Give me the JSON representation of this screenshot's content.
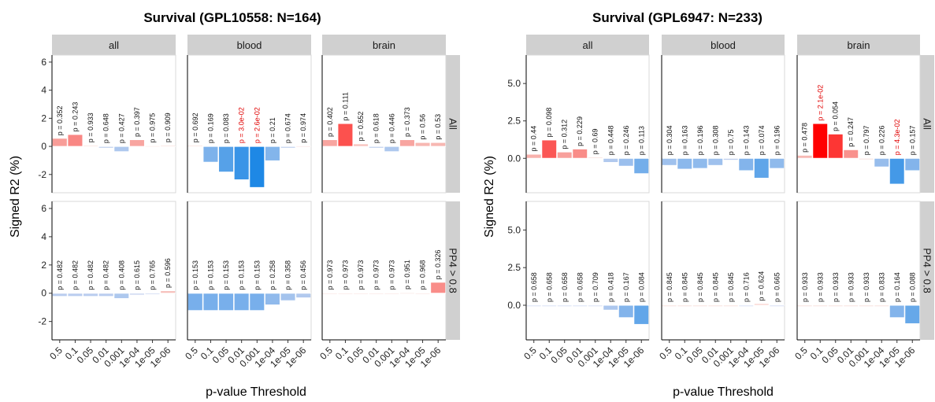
{
  "chart_data": [
    {
      "type": "bar",
      "title": "Survival (GPL10558: N=164)",
      "xlabel": "p-value Threshold",
      "ylabel": "Signed R2 (%)",
      "categories": [
        "0.5",
        "0.1",
        "0.05",
        "0.01",
        "0.001",
        "1e-04",
        "1e-05",
        "1e-06"
      ],
      "columns": [
        "all",
        "blood",
        "brain"
      ],
      "rows": [
        "All",
        "PP4 > 0.8"
      ],
      "ylim": [
        -3.3,
        6.5
      ],
      "yticks": [
        6,
        4,
        2,
        0,
        -2
      ],
      "yticklabels": [
        "6",
        "4",
        "2",
        "0",
        "-2"
      ],
      "panels": [
        {
          "column": "all",
          "row": "All",
          "values": [
            0.55,
            0.82,
            0.05,
            -0.1,
            -0.35,
            0.45,
            0.03,
            0.05
          ],
          "labels": [
            "p = 0.352",
            "p = 0.243",
            "p = 0.933",
            "p = 0.648",
            "p = 0.427",
            "p = 0.397",
            "p = 0.975",
            "p = 0.909"
          ],
          "significant": [
            false,
            false,
            false,
            false,
            false,
            false,
            false,
            false
          ]
        },
        {
          "column": "blood",
          "row": "All",
          "values": [
            0.05,
            -1.1,
            -1.8,
            -2.35,
            -2.9,
            -1.0,
            -0.1,
            0.02
          ],
          "labels": [
            "p = 0.692",
            "p = 0.169",
            "p = 0.083",
            "p = 3.0e-02",
            "p = 2.6e-02",
            "p = 0.21",
            "p = 0.674",
            "p = 0.974"
          ],
          "significant": [
            false,
            false,
            false,
            true,
            true,
            false,
            false,
            false
          ]
        },
        {
          "column": "brain",
          "row": "All",
          "values": [
            0.45,
            1.6,
            0.15,
            -0.1,
            -0.35,
            0.45,
            0.25,
            0.25
          ],
          "labels": [
            "p = 0.402",
            "p = 0.111",
            "p = 0.652",
            "p = 0.618",
            "p = 0.446",
            "p = 0.373",
            "p = 0.56",
            "p = 0.53"
          ],
          "significant": [
            false,
            false,
            false,
            false,
            false,
            false,
            false,
            false
          ]
        },
        {
          "column": "all",
          "row": "PP4 > 0.8",
          "values": [
            -0.2,
            -0.2,
            -0.2,
            -0.2,
            -0.35,
            -0.1,
            -0.05,
            0.15
          ],
          "labels": [
            "p = 0.482",
            "p = 0.482",
            "p = 0.482",
            "p = 0.482",
            "p = 0.408",
            "p = 0.615",
            "p = 0.765",
            "p = 0.596"
          ],
          "significant": [
            false,
            false,
            false,
            false,
            false,
            false,
            false,
            false
          ]
        },
        {
          "column": "blood",
          "row": "PP4 > 0.8",
          "values": [
            -1.2,
            -1.2,
            -1.2,
            -1.2,
            -1.2,
            -0.8,
            -0.5,
            -0.3
          ],
          "labels": [
            "p = 0.153",
            "p = 0.153",
            "p = 0.153",
            "p = 0.153",
            "p = 0.153",
            "p = 0.258",
            "p = 0.358",
            "p = 0.456"
          ],
          "significant": [
            false,
            false,
            false,
            false,
            false,
            false,
            false,
            false
          ]
        },
        {
          "column": "brain",
          "row": "PP4 > 0.8",
          "values": [
            0.02,
            0.02,
            0.02,
            0.02,
            0.02,
            0.04,
            0.02,
            0.75
          ],
          "labels": [
            "p = 0.973",
            "p = 0.973",
            "p = 0.973",
            "p = 0.973",
            "p = 0.973",
            "p = 0.951",
            "p = 0.968",
            "p = 0.326"
          ],
          "significant": [
            false,
            false,
            false,
            false,
            false,
            false,
            false,
            false
          ]
        }
      ]
    },
    {
      "type": "bar",
      "title": "Survival (GPL6947: N=233)",
      "xlabel": "p-value Threshold",
      "ylabel": "Signed R2 (%)",
      "categories": [
        "0.5",
        "0.1",
        "0.05",
        "0.01",
        "0.001",
        "1e-04",
        "1e-05",
        "1e-06"
      ],
      "columns": [
        "all",
        "blood",
        "brain"
      ],
      "rows": [
        "All",
        "PP4 > 0.8"
      ],
      "ylim": [
        -2.3,
        6.9
      ],
      "yticks": [
        5,
        2.5,
        0
      ],
      "yticklabels": [
        "5.0",
        "2.5",
        "0.0"
      ],
      "panels": [
        {
          "column": "all",
          "row": "All",
          "values": [
            0.25,
            1.2,
            0.4,
            0.6,
            0.05,
            -0.25,
            -0.5,
            -1.0
          ],
          "labels": [
            "p = 0.44",
            "p = 0.098",
            "p = 0.312",
            "p = 0.229",
            "p = 0.69",
            "p = 0.448",
            "p = 0.246",
            "p = 0.113"
          ],
          "significant": [
            false,
            false,
            false,
            false,
            false,
            false,
            false,
            false
          ]
        },
        {
          "column": "blood",
          "row": "All",
          "values": [
            -0.45,
            -0.7,
            -0.65,
            -0.45,
            -0.1,
            -0.8,
            -1.3,
            -0.65
          ],
          "labels": [
            "p = 0.304",
            "p = 0.163",
            "p = 0.196",
            "p = 0.308",
            "p = 0.75",
            "p = 0.143",
            "p = 0.074",
            "p = 0.196"
          ],
          "significant": [
            false,
            false,
            false,
            false,
            false,
            false,
            false,
            false
          ]
        },
        {
          "column": "brain",
          "row": "All",
          "values": [
            0.18,
            2.3,
            1.6,
            0.55,
            0.0,
            -0.55,
            -1.7,
            -0.8
          ],
          "labels": [
            "p = 0.478",
            "p = 2.1e-02",
            "p = 0.054",
            "p = 0.247",
            "p = 0.797",
            "p = 0.226",
            "p = 4.3e-02",
            "p = 0.157"
          ],
          "significant": [
            false,
            true,
            false,
            false,
            false,
            false,
            true,
            false
          ]
        },
        {
          "column": "all",
          "row": "PP4 > 0.8",
          "values": [
            -0.03,
            -0.03,
            -0.03,
            -0.03,
            -0.02,
            -0.3,
            -0.8,
            -1.25
          ],
          "labels": [
            "p = 0.658",
            "p = 0.658",
            "p = 0.658",
            "p = 0.658",
            "p = 0.709",
            "p = 0.418",
            "p = 0.167",
            "p = 0.084"
          ],
          "significant": [
            false,
            false,
            false,
            false,
            false,
            false,
            false,
            false
          ]
        },
        {
          "column": "blood",
          "row": "PP4 > 0.8",
          "values": [
            0.0,
            0.0,
            0.0,
            0.0,
            0.0,
            -0.02,
            0.08,
            -0.05
          ],
          "labels": [
            "p = 0.845",
            "p = 0.845",
            "p = 0.845",
            "p = 0.845",
            "p = 0.845",
            "p = 0.716",
            "p = 0.624",
            "p = 0.665"
          ],
          "significant": [
            false,
            false,
            false,
            false,
            false,
            false,
            false,
            false
          ]
        },
        {
          "column": "brain",
          "row": "PP4 > 0.8",
          "values": [
            0.0,
            0.0,
            0.0,
            0.0,
            0.0,
            0.0,
            -0.8,
            -1.2
          ],
          "labels": [
            "p = 0.933",
            "p = 0.933",
            "p = 0.933",
            "p = 0.933",
            "p = 0.933",
            "p = 0.833",
            "p = 0.164",
            "p = 0.088"
          ],
          "significant": [
            false,
            false,
            false,
            false,
            false,
            false,
            false,
            false
          ]
        }
      ]
    }
  ],
  "colors": {
    "positive_max": "#ff0000",
    "positive_min": "#f6d5cf",
    "negative_max": "#1e88e5",
    "negative_min": "#cfd6f0",
    "significant_label": "#e00000",
    "normal_label": "#111111",
    "strip_fill": "#d0d0d0",
    "zero_line": "#ffffff"
  }
}
